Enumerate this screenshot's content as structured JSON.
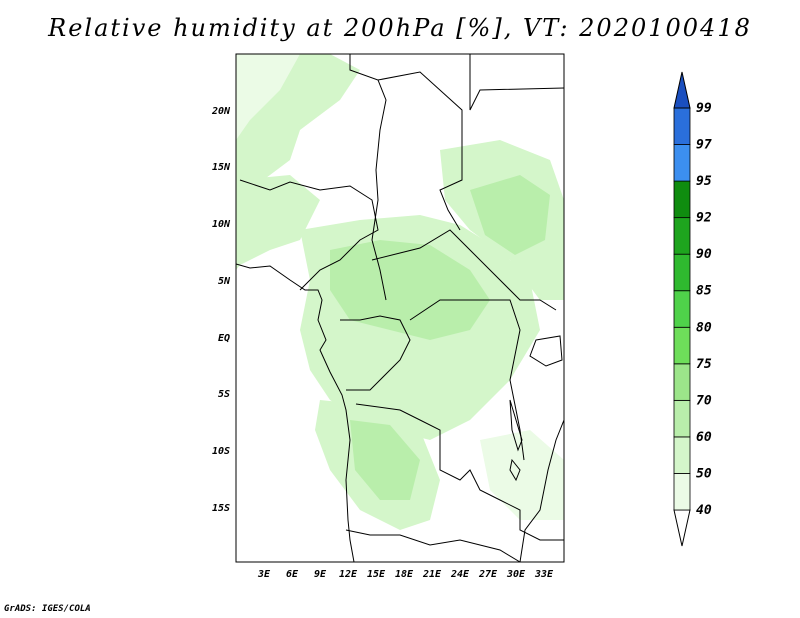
{
  "title": "Relative humidity at 200hPa [%], VT: 2020100418",
  "credit": "GrADS: IGES/COLA",
  "map": {
    "lon_range": [
      0,
      35
    ],
    "lat_range": [
      -20,
      25
    ],
    "lon_ticks": [
      "3E",
      "6E",
      "9E",
      "12E",
      "15E",
      "18E",
      "21E",
      "24E",
      "27E",
      "30E",
      "33E"
    ],
    "lat_ticks": [
      "20N",
      "15N",
      "10N",
      "5N",
      "EQ",
      "5S",
      "10S",
      "15S"
    ],
    "field_color_low": "#ebfbe6",
    "field_color_mid": "#b9eeab"
  },
  "colorbar": {
    "labels": [
      "40",
      "50",
      "60",
      "70",
      "75",
      "80",
      "85",
      "90",
      "92",
      "95",
      "97",
      "99"
    ],
    "colors": [
      "#ffffff",
      "#ebfbe6",
      "#d4f6ca",
      "#b9eeab",
      "#9ce58a",
      "#6ede5a",
      "#4fd24a",
      "#2fba2f",
      "#1ea51e",
      "#0f8c0f",
      "#3c8ff0",
      "#2a6fdb",
      "#1a4fbf"
    ]
  }
}
